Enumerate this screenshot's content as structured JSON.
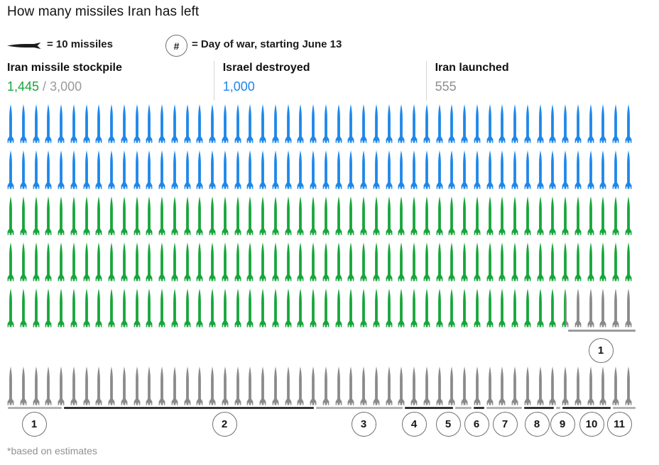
{
  "title": "How many missiles Iran has left",
  "legend": {
    "missile_icon": "horizontal-missile-icon",
    "missile_label": "= 10 missiles",
    "day_symbol": "#",
    "day_label": "= Day of war, starting June 13"
  },
  "stats": {
    "stockpile": {
      "label": "Iran missile stockpile",
      "value": "1,445",
      "separator": " / ",
      "total": "3,000"
    },
    "destroyed": {
      "label": "Israel destroyed",
      "value": "1,000"
    },
    "launched": {
      "label": "Iran launched",
      "value": "555"
    }
  },
  "footnote": "*based on estimates",
  "colors": {
    "destroyed_blue": "#1e87ea",
    "stockpile_green": "#17a63b",
    "launched_gray": "#8a8a8a",
    "bracket_dark": "#333333",
    "bracket_light": "#b2b2b2",
    "bracket_row5": "#9b9b9b"
  },
  "chart_data": {
    "type": "pictogram",
    "unit_per_icon": 10,
    "icons_per_row": 50,
    "totals": {
      "stockpile_remaining": 1445,
      "stockpile_initial": 3000,
      "israel_destroyed": 1000,
      "iran_launched": 555
    },
    "rows": [
      {
        "segments": [
          {
            "color": "destroyed_blue",
            "icons": 50
          }
        ]
      },
      {
        "segments": [
          {
            "color": "destroyed_blue",
            "icons": 50
          }
        ]
      },
      {
        "segments": [
          {
            "color": "stockpile_green",
            "icons": 50
          }
        ]
      },
      {
        "segments": [
          {
            "color": "stockpile_green",
            "icons": 50
          }
        ]
      },
      {
        "segments": [
          {
            "color": "stockpile_green",
            "icons": 44
          },
          {
            "color": "split",
            "icons": 1
          },
          {
            "color": "launched_gray",
            "icons": 5
          }
        ]
      },
      {
        "segments": [
          {
            "color": "launched_gray",
            "icons": 50
          }
        ]
      }
    ],
    "days": [
      {
        "day": "1",
        "missiles": 100
      },
      {
        "day": "2",
        "missiles": 200
      },
      {
        "day": "3",
        "missiles": 70
      },
      {
        "day": "4",
        "missiles": 40
      },
      {
        "day": "5",
        "missiles": 15
      },
      {
        "day": "6",
        "missiles": 10
      },
      {
        "day": "7",
        "missiles": 30
      },
      {
        "day": "8",
        "missiles": 25
      },
      {
        "day": "9",
        "missiles": 5
      },
      {
        "day": "10",
        "missiles": 40
      },
      {
        "day": "11",
        "missiles": 20
      }
    ],
    "day1_split": {
      "row5_icons": 5.5,
      "row6_icons": 4.5
    },
    "row6_day_icons": [
      4.5,
      20,
      7,
      4,
      1.5,
      1,
      3,
      2.5,
      0.5,
      4,
      2
    ]
  }
}
